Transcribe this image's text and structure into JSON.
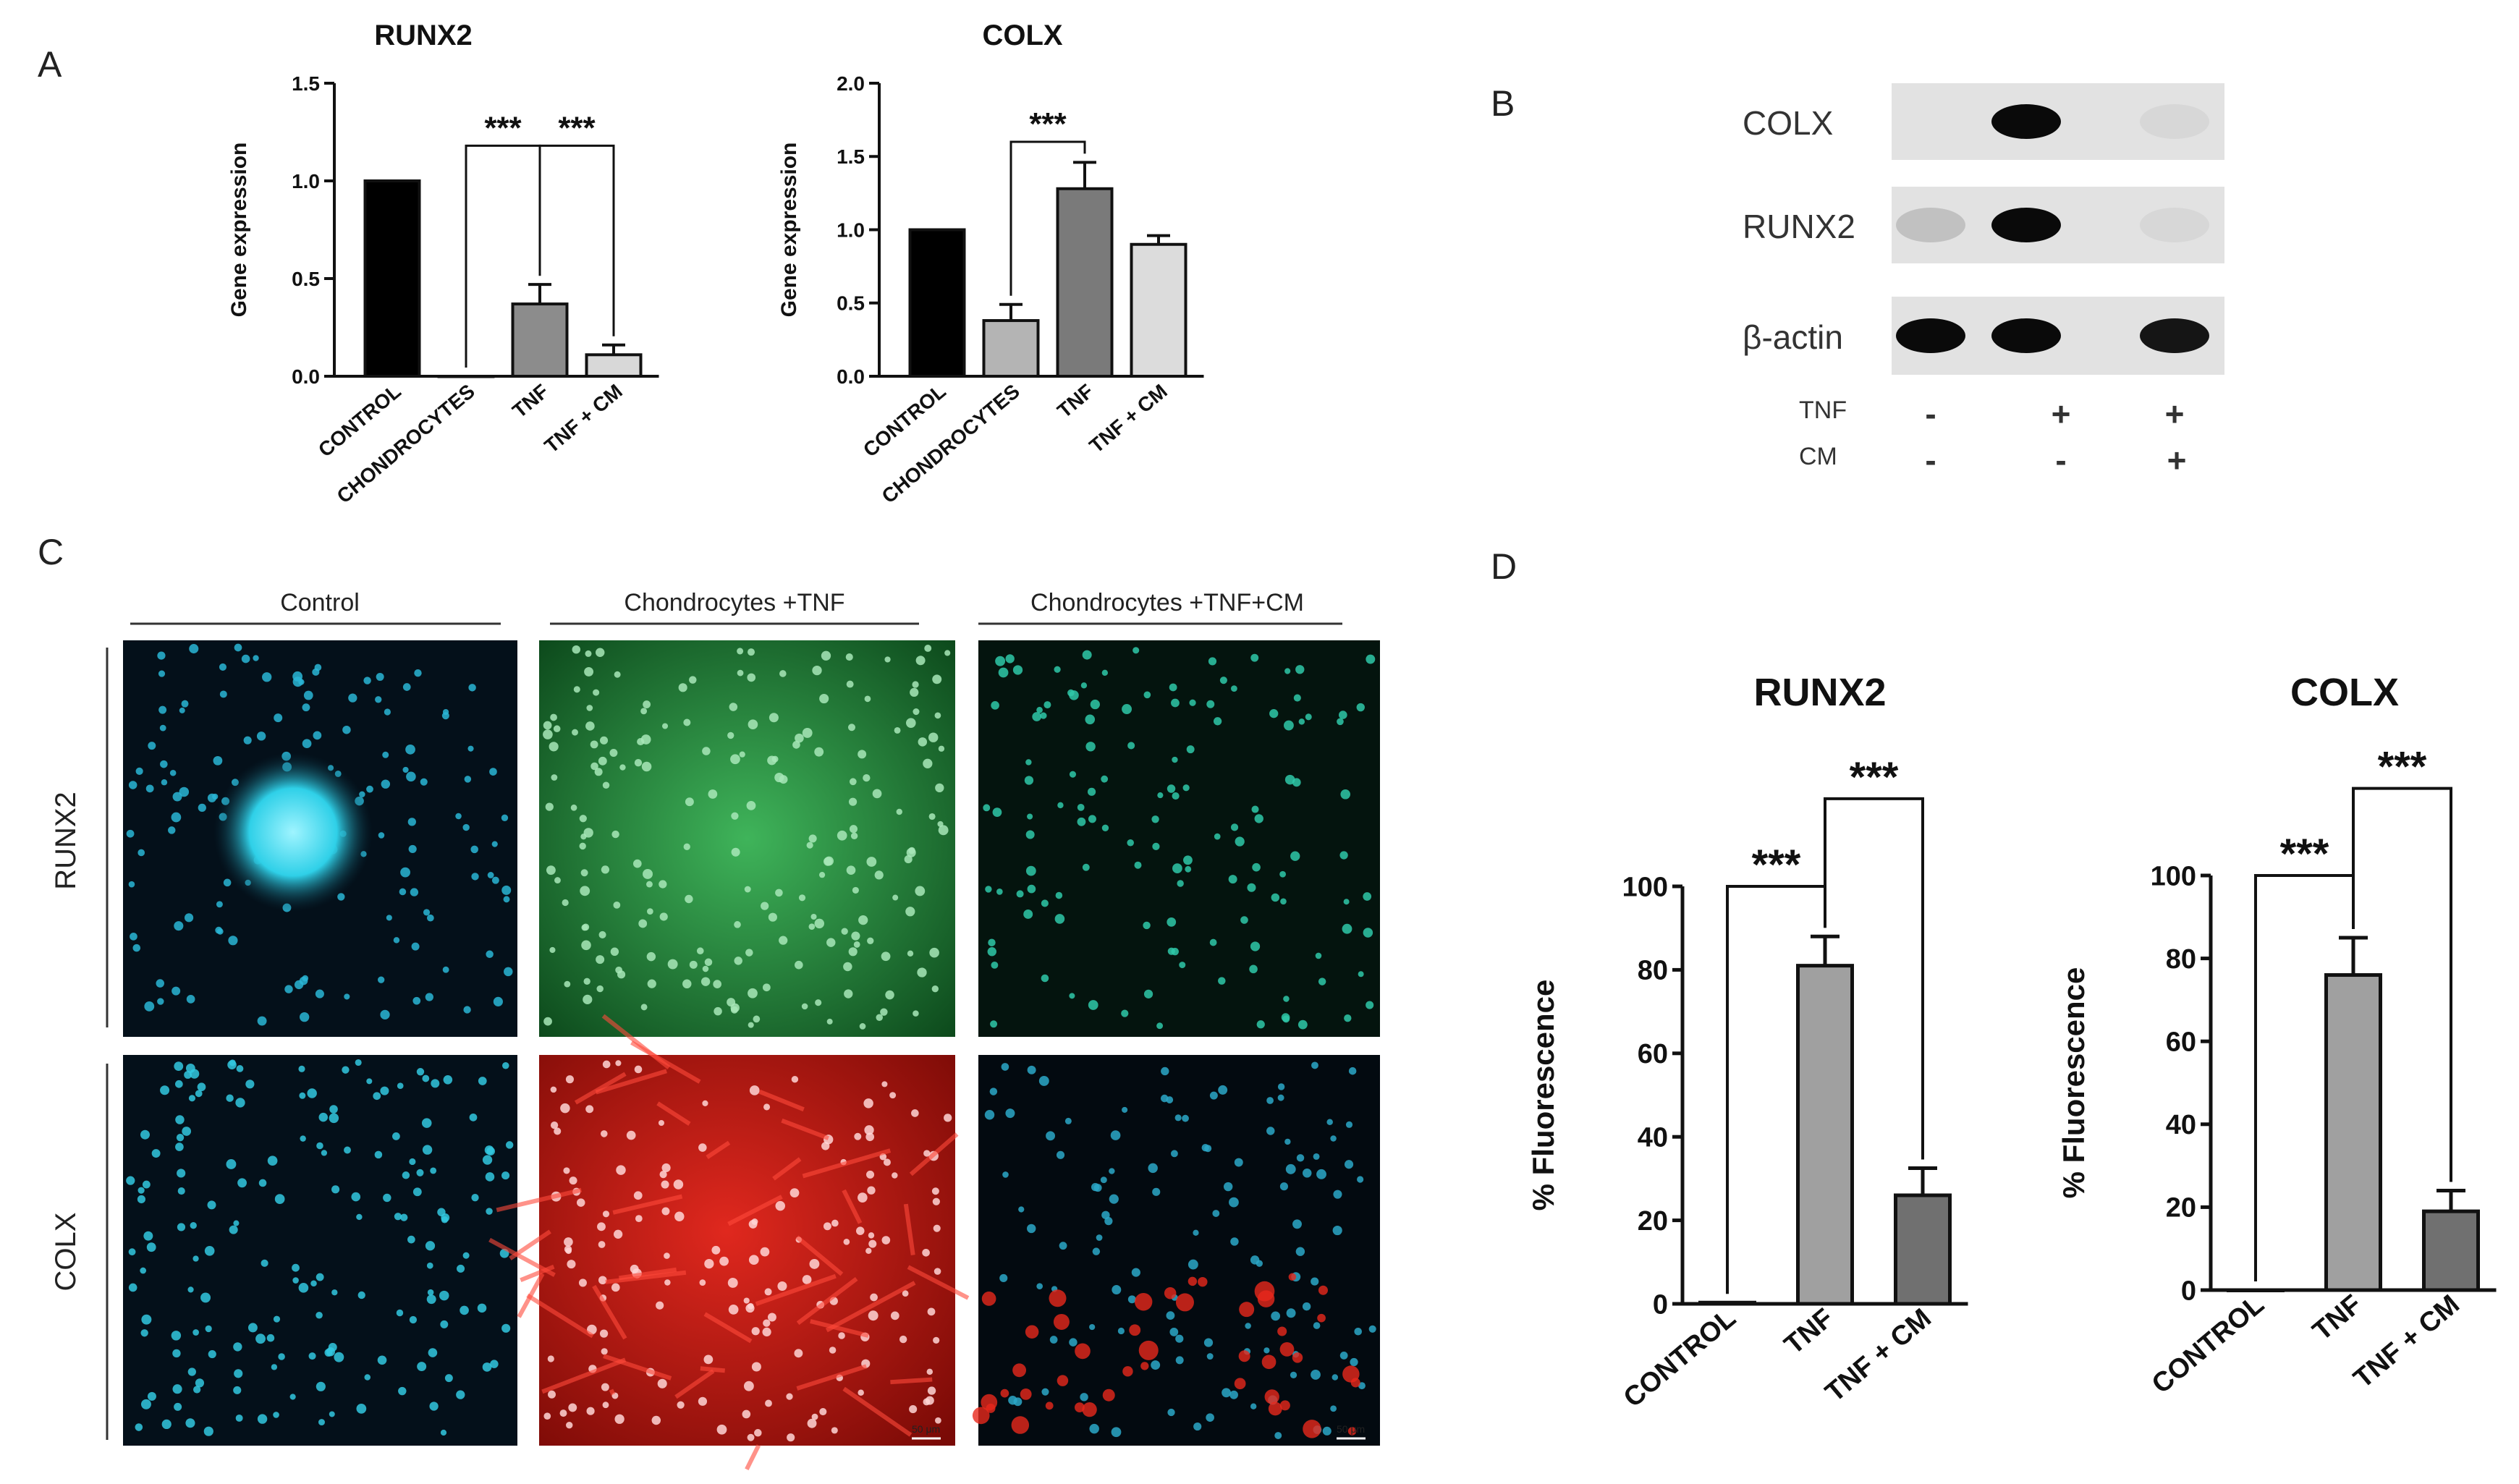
{
  "panel_letters": {
    "a": "A",
    "b": "B",
    "c": "C",
    "d": "D"
  },
  "chart_data": [
    {
      "type": "bar",
      "title": "RUNX2",
      "ylabel": "Gene expression",
      "ylim": [
        0,
        1.5
      ],
      "yticks": [
        "0.0",
        "0.5",
        "1.0",
        "1.5"
      ],
      "categories": [
        "CONTROL",
        "CHONDROCYTES",
        "TNF",
        "TNF + CM"
      ],
      "values": [
        1.0,
        0.0,
        0.37,
        0.11
      ],
      "errors": [
        0,
        0,
        0.1,
        0.05
      ],
      "colors": [
        "#000000",
        "#ffffff",
        "#8c8c8c",
        "#d8d8d8"
      ],
      "significance": [
        {
          "from": 1,
          "to": 2,
          "label": "***",
          "y": 1.18
        },
        {
          "from": 2,
          "to": 3,
          "label": "***",
          "y": 1.18
        }
      ]
    },
    {
      "type": "bar",
      "title": "COLX",
      "ylabel": "Gene expression",
      "ylim": [
        0,
        2.0
      ],
      "yticks": [
        "0.0",
        "0.5",
        "1.0",
        "1.5",
        "2.0"
      ],
      "categories": [
        "CONTROL",
        "CHONDROCYTES",
        "TNF",
        "TNF + CM"
      ],
      "values": [
        1.0,
        0.38,
        1.28,
        0.9
      ],
      "errors": [
        0,
        0.11,
        0.18,
        0.06
      ],
      "colors": [
        "#000000",
        "#b4b4b4",
        "#7a7a7a",
        "#dcdcdc"
      ],
      "significance": [
        {
          "from": 1,
          "to": 2,
          "label": "***",
          "y": 1.6
        }
      ]
    },
    {
      "type": "bar",
      "title": "RUNX2",
      "ylabel": "% Fluorescence",
      "ylim": [
        0,
        100
      ],
      "yticks": [
        "0",
        "20",
        "40",
        "60",
        "80",
        "100"
      ],
      "categories": [
        "CONTROL",
        "TNF",
        "TNF + CM"
      ],
      "values": [
        0.3,
        81,
        26
      ],
      "errors": [
        0,
        7,
        6.5
      ],
      "colors": [
        "#a0a0a0",
        "#a0a0a0",
        "#707070"
      ],
      "significance": [
        {
          "from": 0,
          "to": 1,
          "label": "***",
          "y": 100
        },
        {
          "from": 1,
          "to": 2,
          "label": "***",
          "y": 121
        }
      ]
    },
    {
      "type": "bar",
      "title": "COLX",
      "ylabel": "% Fluorescence",
      "ylim": [
        0,
        100
      ],
      "yticks": [
        "0",
        "20",
        "40",
        "60",
        "80",
        "100"
      ],
      "categories": [
        "CONTROL",
        "TNF",
        "TNF + CM"
      ],
      "values": [
        0,
        76,
        19
      ],
      "errors": [
        0,
        9,
        5
      ],
      "colors": [
        "#a0a0a0",
        "#a0a0a0",
        "#707070"
      ],
      "significance": [
        {
          "from": 0,
          "to": 1,
          "label": "***",
          "y": 100
        },
        {
          "from": 1,
          "to": 2,
          "label": "***",
          "y": 121
        }
      ]
    }
  ],
  "western_blot": {
    "rows": [
      {
        "label": "COLX",
        "bands": [
          0.0,
          1.0,
          0.05
        ]
      },
      {
        "label": "RUNX2",
        "bands": [
          0.15,
          1.0,
          0.05
        ]
      },
      {
        "label": "β-actin",
        "bands": [
          1.0,
          1.0,
          0.95
        ]
      }
    ],
    "conditions": [
      {
        "label": "TNF",
        "signs": [
          "-",
          "+",
          "+"
        ]
      },
      {
        "label": "CM",
        "signs": [
          "-",
          "-",
          "+"
        ]
      }
    ]
  },
  "microscopy": {
    "column_labels": [
      "Control",
      "Chondrocytes +TNF",
      "Chondrocytes +TNF+CM"
    ],
    "row_labels": [
      "RUNX2",
      "COLX"
    ],
    "scale_bar": "50 μm"
  }
}
